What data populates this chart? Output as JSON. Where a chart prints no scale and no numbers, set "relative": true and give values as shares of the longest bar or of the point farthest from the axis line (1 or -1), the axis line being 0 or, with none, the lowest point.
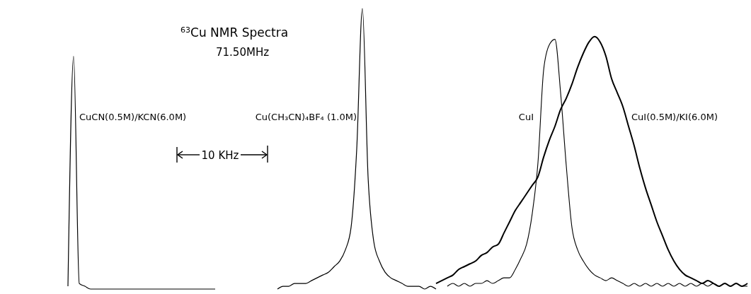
{
  "chart_data": {
    "type": "line",
    "title": "$^{63}$Cu NMR Spectra",
    "subtitle": "71.50MHz",
    "relative": true,
    "annotations": [
      "10 KHz"
    ],
    "categories": [
      null,
      null,
      null,
      null,
      null,
      null,
      null,
      null,
      null,
      null,
      null,
      null,
      null,
      null,
      null,
      null,
      null,
      null,
      null,
      null,
      null,
      null,
      null,
      null,
      null,
      null,
      null,
      null,
      null,
      null,
      null,
      null,
      null,
      null,
      null,
      null,
      null,
      null,
      null,
      null,
      null,
      null,
      null,
      null,
      null,
      null,
      null,
      null,
      null,
      null,
      null,
      null,
      null,
      null,
      null,
      null,
      null,
      null,
      null,
      null,
      null,
      null,
      null,
      null,
      null,
      null,
      null,
      null,
      null,
      null,
      null,
      null,
      null,
      null,
      null,
      null,
      null,
      null,
      null,
      null,
      null,
      null,
      null,
      null,
      null,
      null,
      null,
      null,
      null,
      null,
      null,
      null,
      null,
      null,
      null,
      null,
      null,
      null,
      null,
      null,
      null,
      null,
      null,
      null,
      null,
      null,
      null,
      null,
      null,
      null,
      null,
      null,
      null,
      null,
      null,
      null,
      null,
      null,
      null,
      null,
      null,
      null,
      null,
      null,
      null,
      null,
      null,
      null,
      null,
      null,
      null,
      null,
      null
    ],
    "series": [
      {
        "name": "CuCN(0.5M)/KCN(6.0M)",
        "color": "#000000",
        "values": [
          null,
          null,
          null,
          null,
          null,
          null,
          null,
          null,
          null,
          null,
          null,
          null,
          0.01,
          0.83,
          0.02,
          0.01,
          0,
          0,
          0,
          0,
          0,
          0,
          0,
          0,
          0,
          0,
          0,
          0,
          0,
          0,
          0,
          0,
          0,
          0,
          0,
          0,
          0,
          0,
          0,
          null,
          null,
          null,
          null,
          null,
          null,
          null,
          null,
          null,
          null,
          null,
          null,
          null,
          null,
          null,
          null,
          null,
          null,
          null,
          null,
          null,
          null,
          null,
          null,
          null,
          null,
          null,
          null,
          null,
          null,
          null,
          null,
          null,
          null,
          null,
          null,
          null,
          null,
          null,
          null,
          null,
          null,
          null,
          null,
          null,
          null,
          null,
          null,
          null,
          null,
          null,
          null,
          null,
          null,
          null,
          null,
          null,
          null,
          null,
          null,
          null,
          null,
          null,
          null,
          null,
          null,
          null,
          null,
          null,
          null,
          null,
          null,
          null,
          null,
          null,
          null,
          null,
          null,
          null,
          null,
          null,
          null,
          null,
          null,
          null,
          null,
          null,
          null,
          null,
          null,
          null,
          null,
          null,
          null
        ]
      },
      {
        "name": "Cu(CH₃CN)₄BF₄ (1.0M)",
        "color": "#000000",
        "values": [
          null,
          null,
          null,
          null,
          null,
          null,
          null,
          null,
          null,
          null,
          null,
          null,
          null,
          null,
          null,
          null,
          null,
          null,
          null,
          null,
          null,
          null,
          null,
          null,
          null,
          null,
          null,
          null,
          null,
          null,
          null,
          null,
          null,
          null,
          null,
          null,
          null,
          null,
          null,
          null,
          null,
          null,
          null,
          null,
          null,
          null,
          null,
          null,
          null,
          0,
          0.01,
          0.01,
          0.02,
          0.02,
          0.02,
          0.03,
          0.04,
          0.05,
          0.06,
          0.08,
          0.1,
          0.14,
          0.22,
          0.5,
          1,
          0.4,
          0.17,
          0.1,
          0.06,
          0.04,
          0.03,
          0.02,
          0.01,
          0.01,
          0.01,
          0,
          0.01,
          0,
          null,
          null,
          null,
          null,
          null,
          null,
          null,
          null,
          null,
          null,
          null,
          null,
          null,
          null,
          null,
          null,
          null,
          null,
          null,
          null,
          null,
          null,
          null,
          null,
          null,
          null,
          null,
          null,
          null,
          null,
          null,
          null,
          null,
          null,
          null,
          null,
          null,
          null,
          null,
          null,
          null,
          null,
          null,
          null,
          null,
          null,
          null,
          null,
          null,
          null,
          null,
          null,
          null,
          null,
          null
        ]
      },
      {
        "name": "CuI",
        "color": "#000000",
        "values": [
          null,
          null,
          null,
          null,
          null,
          null,
          null,
          null,
          null,
          null,
          null,
          null,
          null,
          null,
          null,
          null,
          null,
          null,
          null,
          null,
          null,
          null,
          null,
          null,
          null,
          null,
          null,
          null,
          null,
          null,
          null,
          null,
          null,
          null,
          null,
          null,
          null,
          null,
          null,
          null,
          null,
          null,
          null,
          null,
          null,
          null,
          null,
          null,
          null,
          null,
          null,
          null,
          null,
          null,
          null,
          null,
          null,
          null,
          null,
          null,
          null,
          null,
          null,
          null,
          null,
          null,
          null,
          null,
          null,
          null,
          null,
          null,
          null,
          null,
          null,
          null,
          null,
          null,
          null,
          0.01,
          0.02,
          0.01,
          0.02,
          0.01,
          0.02,
          0.02,
          0.03,
          0.02,
          0.03,
          0.04,
          0.04,
          0.07,
          0.11,
          0.16,
          0.27,
          0.45,
          0.78,
          0.87,
          0.89,
          0.7,
          0.44,
          0.22,
          0.14,
          0.1,
          0.07,
          0.05,
          0.04,
          0.03,
          0.04,
          0.03,
          0.02,
          0.01,
          0.02,
          0.01,
          0.02,
          0.01,
          0.02,
          0.01,
          0.02,
          0.01,
          0.02,
          0.01,
          0.02,
          0.01,
          0.02,
          0.01,
          0.02,
          0.01,
          0.02,
          0.01,
          0.02,
          0.01,
          0.01
        ]
      },
      {
        "name": "CuI(0.5M)/KI(6.0M)",
        "color": "#000000",
        "values": [
          null,
          null,
          null,
          null,
          null,
          null,
          null,
          null,
          null,
          null,
          null,
          null,
          null,
          null,
          null,
          null,
          null,
          null,
          null,
          null,
          null,
          null,
          null,
          null,
          null,
          null,
          null,
          null,
          null,
          null,
          null,
          null,
          null,
          null,
          null,
          null,
          null,
          null,
          null,
          null,
          null,
          null,
          null,
          null,
          null,
          null,
          null,
          null,
          null,
          null,
          null,
          null,
          null,
          null,
          null,
          null,
          null,
          null,
          null,
          null,
          null,
          null,
          null,
          null,
          null,
          null,
          null,
          null,
          null,
          null,
          null,
          null,
          null,
          null,
          null,
          null,
          null,
          0.02,
          0.03,
          0.04,
          0.05,
          0.07,
          0.08,
          0.09,
          0.1,
          0.12,
          0.13,
          0.15,
          0.16,
          0.2,
          0.24,
          0.28,
          0.31,
          0.34,
          0.37,
          0.4,
          0.47,
          0.53,
          0.58,
          0.64,
          0.68,
          0.73,
          0.79,
          0.84,
          0.88,
          0.9,
          0.88,
          0.83,
          0.75,
          0.7,
          0.65,
          0.58,
          0.51,
          0.43,
          0.36,
          0.3,
          0.24,
          0.19,
          0.14,
          0.1,
          0.07,
          0.05,
          0.04,
          0.03,
          0.02,
          0.03,
          0.02,
          0.01,
          0.02,
          0.01,
          0.02,
          0.01,
          0.02
        ]
      }
    ]
  }
}
